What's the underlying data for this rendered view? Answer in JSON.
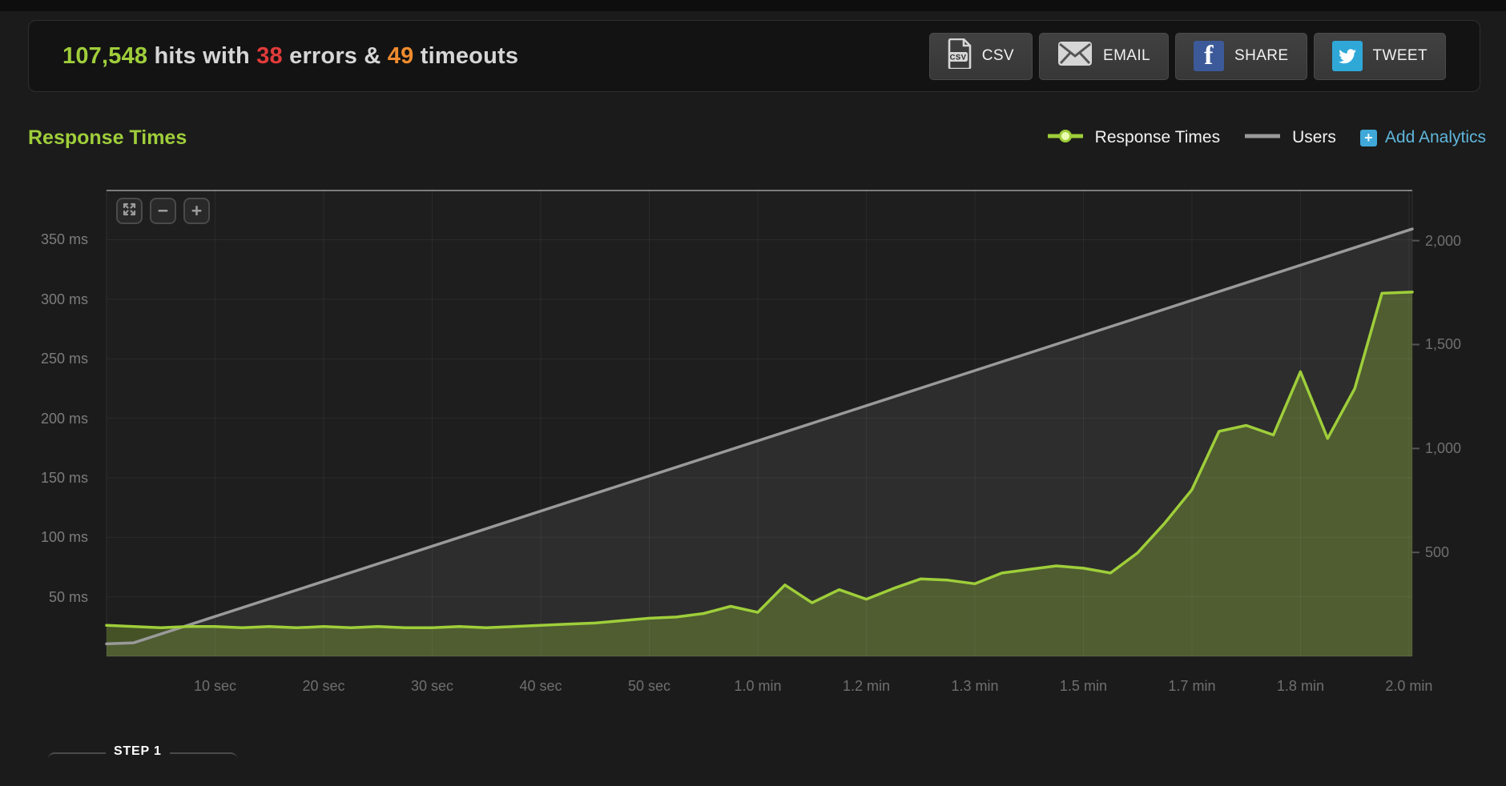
{
  "summary": {
    "hits_value": "107,548",
    "hits_label": "hits with",
    "errors_value": "38",
    "errors_label": "errors &",
    "timeouts_value": "49",
    "timeouts_label": "timeouts"
  },
  "buttons": {
    "csv": "CSV",
    "email": "EMAIL",
    "share": "SHARE",
    "tweet": "TWEET"
  },
  "section": {
    "title": "Response Times",
    "legend": [
      {
        "label": "Response Times",
        "color": "#9fce3a"
      },
      {
        "label": "Users",
        "color": "#9a9a9a"
      }
    ],
    "add_analytics_label": "Add Analytics"
  },
  "icons": {
    "zoom_out": "−",
    "zoom_in": "+",
    "facebook_glyph": "f",
    "add_plus": "+"
  },
  "colors": {
    "accent_green": "#9fce3a",
    "error_red": "#e23b3b",
    "timeout_orange": "#ef8b2e",
    "link_blue": "#5fb6dc",
    "facebook_blue": "#3c5a99",
    "twitter_blue": "#2fa8d8",
    "axis_text": "#6f6f6f",
    "panel_bg": "#131313"
  },
  "step": {
    "label": "STEP 1"
  },
  "chart_data": {
    "type": "area",
    "title": "Response Times",
    "legend_position": "top-right",
    "grid": true,
    "x_axis": {
      "range": [
        0,
        120.3
      ],
      "ticks": [
        {
          "t": 10,
          "label": "10 sec"
        },
        {
          "t": 20,
          "label": "20 sec"
        },
        {
          "t": 30,
          "label": "30 sec"
        },
        {
          "t": 40,
          "label": "40 sec"
        },
        {
          "t": 50,
          "label": "50 sec"
        },
        {
          "t": 60,
          "label": "1.0 min"
        },
        {
          "t": 70,
          "label": "1.2 min"
        },
        {
          "t": 80,
          "label": "1.3 min"
        },
        {
          "t": 90,
          "label": "1.5 min"
        },
        {
          "t": 100,
          "label": "1.7 min"
        },
        {
          "t": 110,
          "label": "1.8 min"
        },
        {
          "t": 120,
          "label": "2.0 min"
        }
      ]
    },
    "y_left": {
      "unit": "ms",
      "range": [
        0,
        392
      ],
      "ticks": [
        {
          "v": 50,
          "label": "50 ms"
        },
        {
          "v": 100,
          "label": "100 ms"
        },
        {
          "v": 150,
          "label": "150 ms"
        },
        {
          "v": 200,
          "label": "200 ms"
        },
        {
          "v": 250,
          "label": "250 ms"
        },
        {
          "v": 300,
          "label": "300 ms"
        },
        {
          "v": 350,
          "label": "350 ms"
        }
      ]
    },
    "y_right": {
      "unit": "users",
      "range": [
        0,
        2245
      ],
      "ticks": [
        {
          "v": 500,
          "label": "500"
        },
        {
          "v": 1000,
          "label": "1,000"
        },
        {
          "v": 1500,
          "label": "1,500"
        },
        {
          "v": 2000,
          "label": "2,000"
        }
      ]
    },
    "series": [
      {
        "name": "Users",
        "axis": "right",
        "color": "#9a9a9a",
        "fill": "rgba(255,255,255,0.065)",
        "points": [
          [
            0,
            60
          ],
          [
            2.5,
            65
          ],
          [
            120.3,
            2056
          ]
        ]
      },
      {
        "name": "Response Times",
        "axis": "left",
        "color": "#9fce3a",
        "fill": "rgba(159,206,58,0.30)",
        "points": [
          [
            0,
            26
          ],
          [
            2.5,
            25
          ],
          [
            5,
            24
          ],
          [
            7.5,
            25
          ],
          [
            10,
            25
          ],
          [
            12.5,
            24
          ],
          [
            15,
            25
          ],
          [
            17.5,
            24
          ],
          [
            20,
            25
          ],
          [
            22.5,
            24
          ],
          [
            25,
            25
          ],
          [
            27.5,
            24
          ],
          [
            30,
            24
          ],
          [
            32.5,
            25
          ],
          [
            35,
            24
          ],
          [
            37.5,
            25
          ],
          [
            40,
            26
          ],
          [
            42.5,
            27
          ],
          [
            45,
            28
          ],
          [
            47.5,
            30
          ],
          [
            50,
            32
          ],
          [
            52.5,
            33
          ],
          [
            55,
            36
          ],
          [
            57.5,
            42
          ],
          [
            60,
            37
          ],
          [
            62.5,
            60
          ],
          [
            65,
            45
          ],
          [
            67.5,
            56
          ],
          [
            70,
            48
          ],
          [
            72.5,
            57
          ],
          [
            75,
            65
          ],
          [
            77.5,
            64
          ],
          [
            80,
            61
          ],
          [
            82.5,
            70
          ],
          [
            85,
            73
          ],
          [
            87.5,
            76
          ],
          [
            90,
            74
          ],
          [
            92.5,
            70
          ],
          [
            95,
            87
          ],
          [
            97.5,
            112
          ],
          [
            100,
            140
          ],
          [
            102.5,
            189
          ],
          [
            105,
            194
          ],
          [
            107.5,
            186
          ],
          [
            110,
            239
          ],
          [
            112.5,
            183
          ],
          [
            115,
            225
          ],
          [
            117.5,
            305
          ],
          [
            120.3,
            306
          ]
        ]
      }
    ]
  }
}
